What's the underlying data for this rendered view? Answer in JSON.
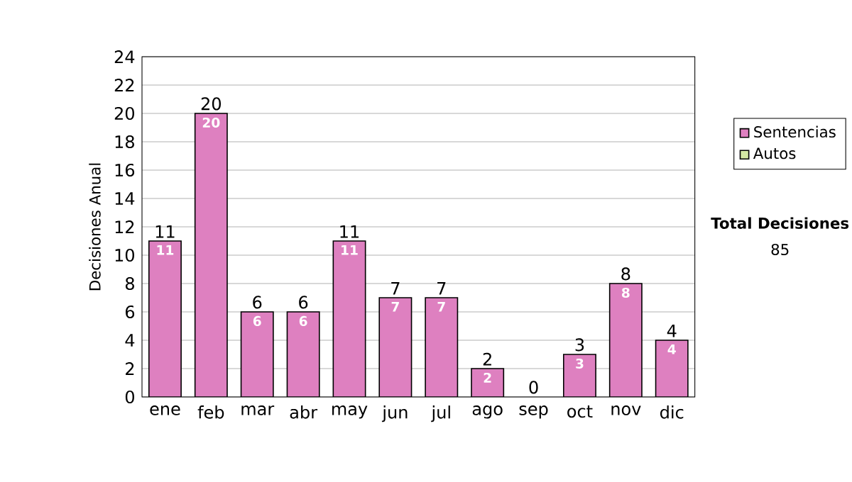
{
  "chart_data": {
    "type": "bar",
    "stacked": true,
    "categories": [
      "ene",
      "feb",
      "mar",
      "abr",
      "may",
      "jun",
      "jul",
      "ago",
      "sep",
      "oct",
      "nov",
      "dic"
    ],
    "series": [
      {
        "name": "Sentencias",
        "color": "#de80c0",
        "values": [
          11,
          20,
          6,
          6,
          11,
          7,
          7,
          2,
          0,
          3,
          8,
          4
        ],
        "value_labels": [
          "11",
          "20",
          "6",
          "6",
          "11",
          "7",
          "7",
          "2",
          null,
          "3",
          "8",
          "4"
        ]
      },
      {
        "name": "Autos",
        "color": "#d4e8a4",
        "values": [
          0,
          0,
          0,
          0,
          0,
          0,
          0,
          0,
          0,
          0,
          0,
          0
        ]
      }
    ],
    "totals": [
      "11",
      "20",
      "6",
      "6",
      "11",
      "7",
      "7",
      "2",
      "0",
      "3",
      "8",
      "4"
    ],
    "ylabel": "Decisiones Anual",
    "ylim": [
      0,
      24
    ],
    "yticks": [
      0,
      2,
      4,
      6,
      8,
      10,
      12,
      14,
      16,
      18,
      20,
      22,
      24
    ],
    "grid": "y",
    "legend": "right",
    "annotations": [
      "**Total Decisiones**",
      "85"
    ]
  }
}
